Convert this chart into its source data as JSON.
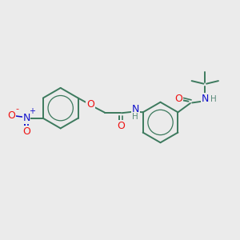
{
  "background_color": "#ebebeb",
  "bond_color": "#3d7a5e",
  "bond_width": 1.4,
  "atom_colors": {
    "O": "#ee1111",
    "N": "#1111cc",
    "H": "#5a8a7a"
  },
  "figsize": [
    3.0,
    3.0
  ],
  "dpi": 100,
  "xlim": [
    0,
    10
  ],
  "ylim": [
    0,
    10
  ]
}
